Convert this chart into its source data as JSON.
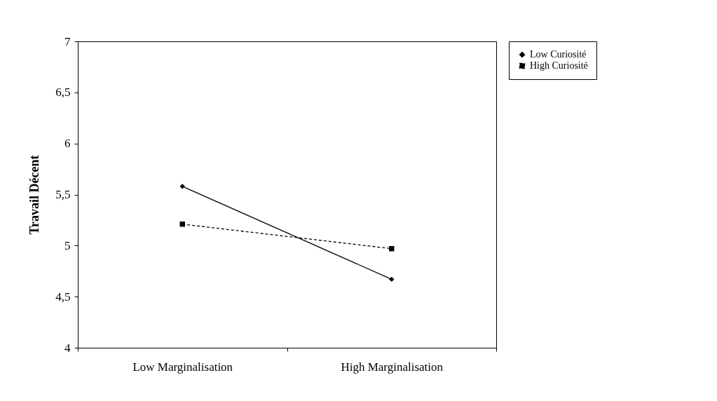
{
  "chart_data": {
    "type": "line",
    "ylabel": "Travail Décent",
    "categories": [
      "Low Marginalisation",
      "High Marginalisation"
    ],
    "series": [
      {
        "name": "Low Curiosité",
        "color": "#000000",
        "marker": "diamond",
        "line_style": "solid",
        "values": [
          5.58,
          4.67
        ]
      },
      {
        "name": "High Curiosité",
        "color": "#000000",
        "marker": "square",
        "line_style": "dashed",
        "values": [
          5.21,
          4.97
        ]
      }
    ],
    "ylim": [
      4,
      7
    ],
    "yticks": [
      4,
      {
        "value": 4.5,
        "label": "4,5"
      },
      5,
      {
        "value": 5.5,
        "label": "5,5"
      },
      6,
      {
        "value": 6.5,
        "label": "6,5"
      },
      7
    ],
    "grid": false,
    "legend": "right"
  }
}
